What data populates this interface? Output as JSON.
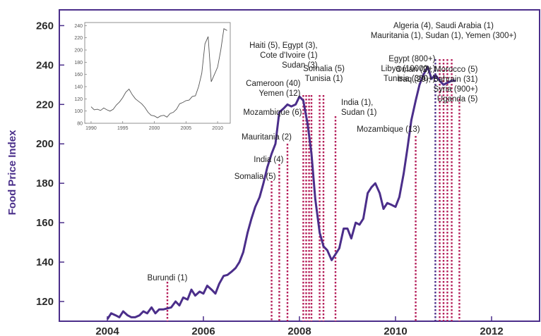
{
  "chart_data": {
    "type": "line",
    "ylabel": "Food  Price Index",
    "xlim": [
      2003,
      2013
    ],
    "ylim": [
      110,
      268
    ],
    "xticks": [
      2004,
      2006,
      2008,
      2010,
      2012
    ],
    "yticks": [
      120,
      140,
      160,
      180,
      200,
      220,
      240,
      260
    ],
    "grid": false,
    "colors": {
      "line": "#4b2e8a",
      "axis": "#4b2e8a",
      "event": "#b51f5a",
      "event_alt": "#4b2e8a"
    },
    "series": [
      {
        "x": [
          2004.0,
          2004.08,
          2004.17,
          2004.25,
          2004.33,
          2004.42,
          2004.5,
          2004.58,
          2004.67,
          2004.75,
          2004.83,
          2004.92,
          2005.0,
          2005.08,
          2005.17,
          2005.25,
          2005.33,
          2005.42,
          2005.5,
          2005.58,
          2005.67,
          2005.75,
          2005.83,
          2005.92,
          2006.0,
          2006.08,
          2006.17,
          2006.25,
          2006.33,
          2006.42,
          2006.5,
          2006.58,
          2006.67,
          2006.75,
          2006.83,
          2006.92,
          2007.0,
          2007.08,
          2007.17,
          2007.25,
          2007.33,
          2007.42,
          2007.5,
          2007.58,
          2007.67,
          2007.75,
          2007.83,
          2007.92,
          2008.0,
          2008.08,
          2008.17,
          2008.25,
          2008.33,
          2008.42,
          2008.5,
          2008.58,
          2008.67,
          2008.75,
          2008.83,
          2008.92,
          2009.0,
          2009.08,
          2009.17,
          2009.25,
          2009.33,
          2009.42,
          2009.5,
          2009.58,
          2009.67,
          2009.75,
          2009.83,
          2009.92,
          2010.0,
          2010.08,
          2010.17,
          2010.25,
          2010.33,
          2010.42,
          2010.5,
          2010.58,
          2010.67,
          2010.75,
          2010.83,
          2010.92,
          2011.0,
          2011.08,
          2011.17,
          2011.25
        ],
        "values": [
          111,
          114,
          113,
          112,
          115,
          113,
          112,
          112,
          113,
          115,
          114,
          117,
          114,
          116,
          116,
          116.5,
          117,
          120,
          118,
          122,
          121,
          126,
          123,
          125,
          124,
          128,
          126,
          124,
          129,
          133,
          133.5,
          135,
          137,
          140,
          145,
          155,
          162,
          168,
          173,
          180,
          188,
          195,
          200,
          216,
          218,
          220,
          219,
          220,
          224,
          222,
          210,
          195,
          172,
          155,
          148,
          146,
          141,
          144,
          147,
          157,
          157,
          152,
          160,
          159,
          162,
          175,
          178,
          180,
          175,
          167,
          170,
          169,
          168,
          173,
          185,
          198,
          212,
          222,
          230,
          235,
          239,
          233,
          235,
          232,
          230,
          231,
          232,
          232
        ]
      }
    ],
    "events": [
      {
        "x": 2005.25,
        "color": "event",
        "label_lines": [
          "Burundi (1)"
        ]
      },
      {
        "x": 2007.42,
        "color": "event",
        "label_lines": [
          "Somalia (5)"
        ]
      },
      {
        "x": 2007.58,
        "color": "event",
        "label_lines": [
          "India (4)"
        ]
      },
      {
        "x": 2007.75,
        "color": "event",
        "label_lines": [
          "Mauritania (2)"
        ]
      },
      {
        "x": 2008.08,
        "color": "event",
        "label_lines": [
          "Mozambique (6)"
        ]
      },
      {
        "x": 2008.14,
        "color": "event",
        "label_lines": [
          "Cameroon (40)",
          "Yemen (12)"
        ]
      },
      {
        "x": 2008.2,
        "color": "event",
        "label_lines": [
          "Haiti (5), Egypt (3),",
          "Cote d'Ivoire (1)",
          "Sudan (3)"
        ]
      },
      {
        "x": 2008.25,
        "color": "event",
        "label_lines": []
      },
      {
        "x": 2008.42,
        "color": "event",
        "label_lines": [
          "Somalia (5)",
          "Tunisia (1)"
        ]
      },
      {
        "x": 2008.5,
        "color": "event",
        "label_lines": []
      },
      {
        "x": 2008.75,
        "color": "event",
        "label_lines": [
          "India (1),",
          "Sudan (1)"
        ]
      },
      {
        "x": 2010.42,
        "color": "event",
        "label_lines": [
          "Mozambique (13)"
        ]
      },
      {
        "x": 2010.83,
        "color": "event_alt",
        "label_lines": [
          "Egypt (800+)",
          "Libya (10000+)",
          "Tunisia (300+)"
        ]
      },
      {
        "x": 2010.92,
        "color": "event",
        "label_lines": []
      },
      {
        "x": 2011.0,
        "color": "event",
        "label_lines": [
          "Algeria (4), Saudi Arabia (1)",
          "Mauritania (1), Sudan (1), Yemen (300+)"
        ]
      },
      {
        "x": 2011.08,
        "color": "event",
        "label_lines": []
      },
      {
        "x": 2011.17,
        "color": "event",
        "label_lines": []
      },
      {
        "x": 2011.33,
        "color": "event",
        "label_lines": [
          "Oman (2), Morocco (5)",
          "Iraq (29), Bahrain (31)",
          "Syria (900+)",
          "Uganda (5)"
        ]
      }
    ],
    "inset": {
      "type": "line",
      "xlim": [
        1989,
        2012
      ],
      "ylim": [
        80,
        245
      ],
      "xticks": [
        1990,
        1995,
        2000,
        2005,
        2010
      ],
      "yticks": [
        80,
        100,
        120,
        140,
        160,
        180,
        200,
        220,
        240
      ],
      "x": [
        1990,
        1990.5,
        1991,
        1991.5,
        1992,
        1992.5,
        1993,
        1993.5,
        1994,
        1994.5,
        1995,
        1995.5,
        1996,
        1996.5,
        1997,
        1997.5,
        1998,
        1998.5,
        1999,
        1999.5,
        2000,
        2000.5,
        2001,
        2001.5,
        2002,
        2002.5,
        2003,
        2003.5,
        2004,
        2004.5,
        2005,
        2005.5,
        2006,
        2006.5,
        2007,
        2007.5,
        2008,
        2008.5,
        2009,
        2009.5,
        2010,
        2010.5,
        2011,
        2011.5
      ],
      "values": [
        107,
        102,
        103,
        101,
        105,
        102,
        100,
        103,
        110,
        115,
        122,
        131,
        136,
        127,
        120,
        116,
        112,
        106,
        98,
        93,
        92,
        89,
        92,
        93,
        90,
        96,
        98,
        103,
        112,
        114,
        117,
        118,
        124,
        125,
        140,
        162,
        210,
        222,
        148,
        160,
        172,
        200,
        235,
        232
      ]
    }
  }
}
